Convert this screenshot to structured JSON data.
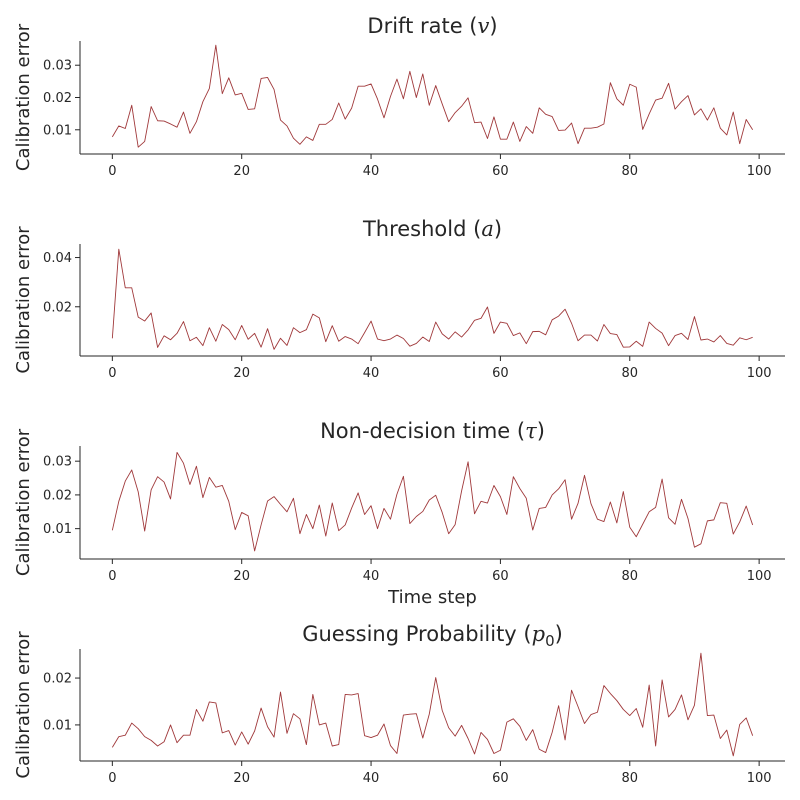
{
  "figure": {
    "line_color": "#a0393b",
    "axis_color": "#262626"
  },
  "chart_data": [
    {
      "type": "line",
      "title": "Drift rate",
      "title_symbol": "v",
      "xlabel": "",
      "ylabel": "Calibration error",
      "xlim": [
        -5,
        104
      ],
      "ylim": [
        0.0025,
        0.0375
      ],
      "xticks": [
        0,
        20,
        40,
        60,
        80,
        100
      ],
      "xtick_labels": [
        "0",
        "20",
        "40",
        "60",
        "80",
        "100"
      ],
      "yticks": [
        0.01,
        0.02,
        0.03
      ],
      "ytick_labels": [
        "0.01",
        "0.02",
        "0.03"
      ],
      "series": [
        {
          "color": "#a0393b",
          "values": [
            0.0078,
            0.0112,
            0.0104,
            0.0176,
            0.0046,
            0.0064,
            0.0172,
            0.0128,
            0.0127,
            0.0118,
            0.0108,
            0.0155,
            0.0089,
            0.0125,
            0.0187,
            0.0228,
            0.0362,
            0.0212,
            0.0261,
            0.0208,
            0.0213,
            0.0163,
            0.0165,
            0.0259,
            0.0262,
            0.0225,
            0.013,
            0.0112,
            0.0074,
            0.0055,
            0.0078,
            0.0067,
            0.0117,
            0.0117,
            0.0132,
            0.0183,
            0.0133,
            0.0167,
            0.0235,
            0.0235,
            0.0242,
            0.0195,
            0.0137,
            0.0203,
            0.0257,
            0.0196,
            0.0281,
            0.02,
            0.0273,
            0.0176,
            0.0237,
            0.018,
            0.0125,
            0.0153,
            0.0173,
            0.0199,
            0.0122,
            0.0124,
            0.0073,
            0.014,
            0.0071,
            0.0071,
            0.0124,
            0.0064,
            0.011,
            0.0089,
            0.0168,
            0.0148,
            0.0141,
            0.0098,
            0.0099,
            0.0121,
            0.0057,
            0.0105,
            0.0105,
            0.0108,
            0.0118,
            0.0246,
            0.0196,
            0.0176,
            0.0241,
            0.0232,
            0.0101,
            0.0149,
            0.0192,
            0.0198,
            0.0244,
            0.0164,
            0.0187,
            0.0206,
            0.0146,
            0.0165,
            0.013,
            0.0168,
            0.0105,
            0.0084,
            0.0155,
            0.0057,
            0.0132,
            0.01
          ]
        }
      ]
    },
    {
      "type": "line",
      "title": "Threshold",
      "title_symbol": "a",
      "xlabel": "",
      "ylabel": "Calibration error",
      "xlim": [
        -5,
        104
      ],
      "ylim": [
        0.0,
        0.0455
      ],
      "xticks": [
        0,
        20,
        40,
        60,
        80,
        100
      ],
      "xtick_labels": [
        "0",
        "20",
        "40",
        "60",
        "80",
        "100"
      ],
      "yticks": [
        0.02,
        0.04
      ],
      "ytick_labels": [
        "0.02",
        "0.04"
      ],
      "series": [
        {
          "color": "#a0393b",
          "values": [
            0.0072,
            0.0434,
            0.0277,
            0.0277,
            0.0158,
            0.0142,
            0.0175,
            0.0035,
            0.0082,
            0.0066,
            0.0092,
            0.014,
            0.0062,
            0.0076,
            0.0042,
            0.0115,
            0.006,
            0.0128,
            0.0107,
            0.0066,
            0.0124,
            0.0068,
            0.0092,
            0.0036,
            0.0111,
            0.0027,
            0.0072,
            0.0043,
            0.0115,
            0.0095,
            0.0107,
            0.017,
            0.0155,
            0.0058,
            0.0123,
            0.006,
            0.0079,
            0.0069,
            0.005,
            0.0095,
            0.0142,
            0.0069,
            0.0062,
            0.0069,
            0.0085,
            0.0071,
            0.004,
            0.0051,
            0.0077,
            0.0059,
            0.0138,
            0.009,
            0.0069,
            0.0098,
            0.0077,
            0.0106,
            0.0145,
            0.0153,
            0.0199,
            0.0092,
            0.0138,
            0.0133,
            0.0083,
            0.0094,
            0.005,
            0.0099,
            0.01,
            0.0086,
            0.0147,
            0.0162,
            0.019,
            0.0133,
            0.0062,
            0.0085,
            0.0085,
            0.0061,
            0.0128,
            0.0091,
            0.0087,
            0.0036,
            0.0037,
            0.006,
            0.0039,
            0.0138,
            0.0112,
            0.0093,
            0.0042,
            0.0083,
            0.0092,
            0.0067,
            0.016,
            0.0065,
            0.0069,
            0.0057,
            0.0083,
            0.0051,
            0.0044,
            0.0074,
            0.0066,
            0.0076
          ]
        }
      ]
    },
    {
      "type": "line",
      "title": "Non-decision time",
      "title_symbol": "τ",
      "xlabel": "Time step",
      "ylabel": "Calibration error",
      "xlim": [
        -5,
        104
      ],
      "ylim": [
        0.001,
        0.0345
      ],
      "xticks": [
        0,
        20,
        40,
        60,
        80,
        100
      ],
      "xtick_labels": [
        "0",
        "20",
        "40",
        "60",
        "80",
        "100"
      ],
      "yticks": [
        0.01,
        0.02,
        0.03
      ],
      "ytick_labels": [
        "0.01",
        "0.02",
        "0.03"
      ],
      "series": [
        {
          "color": "#a0393b",
          "values": [
            0.0095,
            0.0181,
            0.0241,
            0.0274,
            0.0209,
            0.0093,
            0.0215,
            0.0254,
            0.0238,
            0.0188,
            0.0326,
            0.0294,
            0.0231,
            0.0285,
            0.0192,
            0.0252,
            0.0223,
            0.0228,
            0.0181,
            0.0097,
            0.0148,
            0.0138,
            0.0034,
            0.0111,
            0.0182,
            0.0195,
            0.0172,
            0.015,
            0.019,
            0.0085,
            0.0142,
            0.01,
            0.017,
            0.0078,
            0.0176,
            0.0094,
            0.0111,
            0.0161,
            0.0206,
            0.0142,
            0.0168,
            0.01,
            0.016,
            0.0128,
            0.0202,
            0.0255,
            0.0115,
            0.0136,
            0.0151,
            0.0185,
            0.0199,
            0.0148,
            0.0085,
            0.0112,
            0.0212,
            0.0298,
            0.0144,
            0.0181,
            0.0176,
            0.0228,
            0.0195,
            0.0142,
            0.0254,
            0.0219,
            0.019,
            0.0096,
            0.016,
            0.0163,
            0.02,
            0.0218,
            0.0245,
            0.0128,
            0.0175,
            0.0258,
            0.0174,
            0.0128,
            0.0121,
            0.0179,
            0.0117,
            0.021,
            0.0104,
            0.0076,
            0.0113,
            0.015,
            0.0163,
            0.0247,
            0.0132,
            0.0113,
            0.0187,
            0.013,
            0.0045,
            0.0055,
            0.0123,
            0.0126,
            0.0177,
            0.0175,
            0.0084,
            0.012,
            0.0167,
            0.0111
          ]
        }
      ]
    },
    {
      "type": "line",
      "title": "Guessing Probability",
      "title_symbol": "p",
      "title_symbol_sub": "0",
      "xlabel": "",
      "ylabel": "Calibration error",
      "xlim": [
        -5,
        104
      ],
      "ylim": [
        0.0023,
        0.0262
      ],
      "xticks": [
        0,
        20,
        40,
        60,
        80,
        100
      ],
      "xtick_labels": [
        "0",
        "20",
        "40",
        "60",
        "80",
        "100"
      ],
      "yticks": [
        0.01,
        0.02
      ],
      "ytick_labels": [
        "0.01",
        "0.02"
      ],
      "series": [
        {
          "color": "#a0393b",
          "values": [
            0.0052,
            0.0075,
            0.0078,
            0.0104,
            0.0092,
            0.0075,
            0.0067,
            0.0055,
            0.0064,
            0.01,
            0.0062,
            0.0078,
            0.0078,
            0.0133,
            0.0108,
            0.0149,
            0.0147,
            0.0083,
            0.0088,
            0.0057,
            0.0085,
            0.0059,
            0.0087,
            0.0136,
            0.0096,
            0.0074,
            0.017,
            0.0082,
            0.0124,
            0.0113,
            0.0058,
            0.0165,
            0.01,
            0.0104,
            0.0055,
            0.0058,
            0.0165,
            0.0164,
            0.0167,
            0.0077,
            0.0073,
            0.0078,
            0.0102,
            0.0056,
            0.0039,
            0.0121,
            0.0123,
            0.0124,
            0.0072,
            0.0123,
            0.0201,
            0.0131,
            0.0094,
            0.0076,
            0.0099,
            0.0071,
            0.0038,
            0.0084,
            0.0069,
            0.0039,
            0.0046,
            0.0106,
            0.0113,
            0.0097,
            0.0067,
            0.009,
            0.0048,
            0.0041,
            0.0084,
            0.0141,
            0.0068,
            0.0174,
            0.0139,
            0.0103,
            0.0122,
            0.0127,
            0.0184,
            0.0167,
            0.0152,
            0.0133,
            0.012,
            0.0135,
            0.0095,
            0.0185,
            0.0055,
            0.0196,
            0.0117,
            0.0133,
            0.0164,
            0.0111,
            0.0142,
            0.0253,
            0.012,
            0.0121,
            0.0071,
            0.0089,
            0.0034,
            0.0101,
            0.0115,
            0.0077
          ]
        }
      ]
    }
  ]
}
